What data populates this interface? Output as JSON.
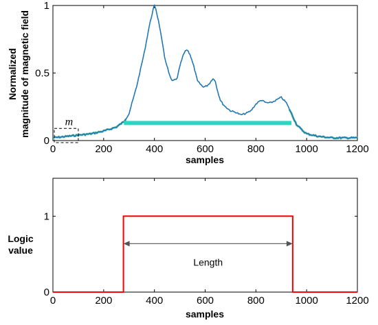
{
  "chart_data": [
    {
      "type": "line",
      "title": "",
      "xlabel": "samples",
      "ylabel": [
        "Normalized",
        "magnitude of magnetic field"
      ],
      "xlim": [
        0,
        1200
      ],
      "ylim": [
        0,
        1
      ],
      "xticks": [
        "0",
        "200",
        "400",
        "600",
        "800",
        "1000",
        "1200"
      ],
      "yticks": [
        "0",
        "0.5",
        "1"
      ],
      "grid": false,
      "legend": "none",
      "colors": {
        "signal": "#1f77b4",
        "threshold": "#29d6bf",
        "noise": "#66c2a5"
      },
      "series": [
        {
          "x": [
            0,
            50,
            100,
            150,
            200,
            250,
            280,
            300,
            330,
            360,
            380,
            395,
            400,
            405,
            420,
            440,
            460,
            470,
            490,
            500,
            515,
            525,
            530,
            540,
            555,
            570,
            580,
            590,
            600,
            610,
            620,
            630,
            640,
            650,
            660,
            670,
            680,
            700,
            720,
            740,
            760,
            780,
            800,
            820,
            840,
            860,
            880,
            900,
            920,
            940,
            960,
            980,
            1000,
            1050,
            1100,
            1150,
            1200
          ],
          "values": [
            0.02,
            0.03,
            0.04,
            0.05,
            0.07,
            0.1,
            0.14,
            0.2,
            0.4,
            0.65,
            0.85,
            0.97,
            1.0,
            0.98,
            0.85,
            0.62,
            0.48,
            0.44,
            0.46,
            0.55,
            0.64,
            0.67,
            0.67,
            0.64,
            0.55,
            0.44,
            0.42,
            0.4,
            0.4,
            0.41,
            0.43,
            0.46,
            0.44,
            0.36,
            0.3,
            0.27,
            0.25,
            0.22,
            0.21,
            0.19,
            0.2,
            0.22,
            0.27,
            0.3,
            0.28,
            0.28,
            0.3,
            0.32,
            0.28,
            0.2,
            0.12,
            0.08,
            0.05,
            0.03,
            0.02,
            0.02,
            0.02
          ]
        },
        {
          "x": [
            280,
            940
          ],
          "values": [
            0.13,
            0.13
          ]
        }
      ],
      "annotations": [
        {
          "label": "m",
          "x": [
            0,
            100
          ],
          "y": [
            0,
            0.09
          ]
        }
      ]
    },
    {
      "type": "line",
      "title": "",
      "xlabel": "samples",
      "ylabel": [
        "Logic",
        "value"
      ],
      "xlim": [
        0,
        1200
      ],
      "ylim": [
        0,
        1.5
      ],
      "xticks": [
        "0",
        "200",
        "400",
        "600",
        "800",
        "1000",
        "1200"
      ],
      "yticks": [
        "0",
        "1"
      ],
      "grid": false,
      "legend": "none",
      "colors": {
        "logic": "#ff0000",
        "arrow": "#555555"
      },
      "series": [
        {
          "x": [
            0,
            278,
            278,
            945,
            945,
            1200
          ],
          "values": [
            0,
            0,
            1,
            1,
            0,
            0
          ]
        }
      ],
      "annotations": [
        {
          "label": "Length",
          "from": 278,
          "to": 945,
          "y": 0.75
        }
      ]
    }
  ]
}
